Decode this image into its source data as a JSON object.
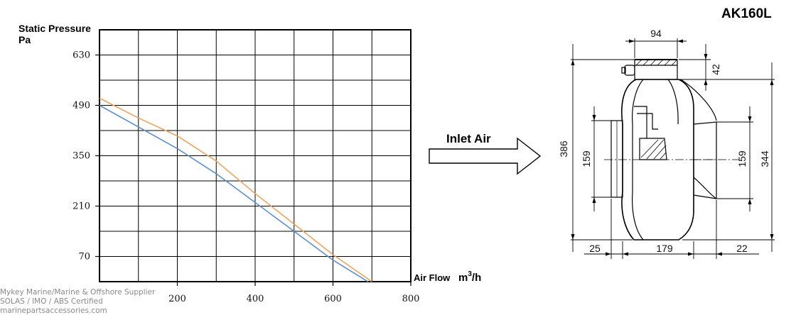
{
  "title": "AK160L",
  "inlet_label": "Inlet Air",
  "watermark": [
    "Mykey Marine/Marine & Offshore Supplier",
    "SOLAS / IMO / ABS Certified",
    "marinepartsaccessories.com"
  ],
  "colors": {
    "series_orange": "#f0a35c",
    "series_blue": "#5b8fcf",
    "grid": "#000000"
  },
  "chart_data": {
    "type": "line",
    "ylabel": [
      "Static Pressure",
      "Pa"
    ],
    "xlabel": "Air Flow",
    "xunit_base": "m",
    "xunit_sup": "3",
    "xunit_tail": "/h",
    "xlim": [
      0,
      800
    ],
    "ylim": [
      0,
      700
    ],
    "xticks": [
      200,
      400,
      600,
      800
    ],
    "yticks": [
      70,
      210,
      350,
      490,
      630
    ],
    "series": [
      {
        "color": "#f0a35c",
        "x": [
          0,
          100,
          200,
          300,
          400,
          500,
          600,
          700
        ],
        "y": [
          510,
          455,
          405,
          335,
          245,
          160,
          75,
          0
        ]
      },
      {
        "color": "#5b8fcf",
        "x": [
          0,
          100,
          200,
          300,
          400,
          500,
          600,
          690
        ],
        "y": [
          490,
          430,
          370,
          300,
          220,
          140,
          60,
          0
        ]
      }
    ]
  },
  "dimensions": {
    "top_width": "94",
    "top_height": "42",
    "overall_height": "386",
    "inlet_diameter_left": "159",
    "outlet_diameter_right": "159",
    "right_height": "344",
    "left_collar": "25",
    "body_length": "179",
    "right_collar": "22"
  }
}
